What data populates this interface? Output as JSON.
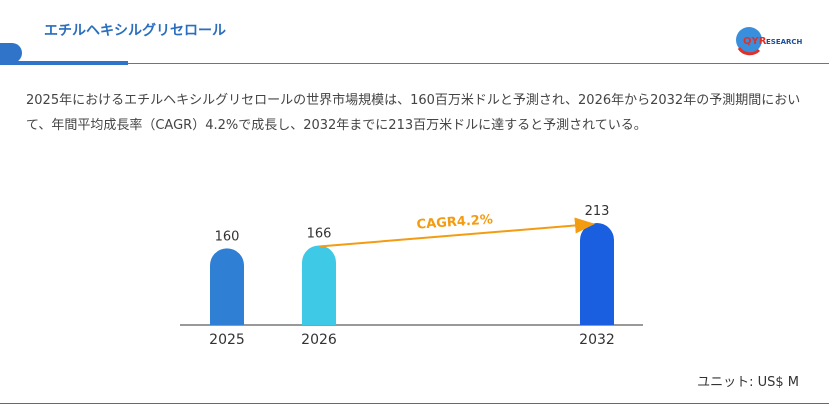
{
  "header": {
    "title": "エチルヘキシルグリセロール",
    "logo_text": "QYRESEARCH"
  },
  "description": "2025年におけるエチルヘキシルグリセロールの世界市場規模は、160百万米ドルと予測され、2026年から2032年の予測期間において、年間平均成長率（CAGR）4.2%で成長し、2032年までに213百万米ドルに達すると予測されている。",
  "unit": "ユニット: US$ M",
  "chart_data": {
    "type": "bar",
    "categories": [
      "2025",
      "2026",
      "2032"
    ],
    "values": [
      160,
      166,
      213
    ],
    "colors": [
      "#2f80d4",
      "#3ec9e6",
      "#1a5fe0"
    ],
    "annotation": {
      "text": "CAGR4.2%",
      "from": "2026",
      "to": "2032",
      "color": "#f39c12"
    },
    "ylim": [
      0,
      213
    ],
    "grid": false
  }
}
